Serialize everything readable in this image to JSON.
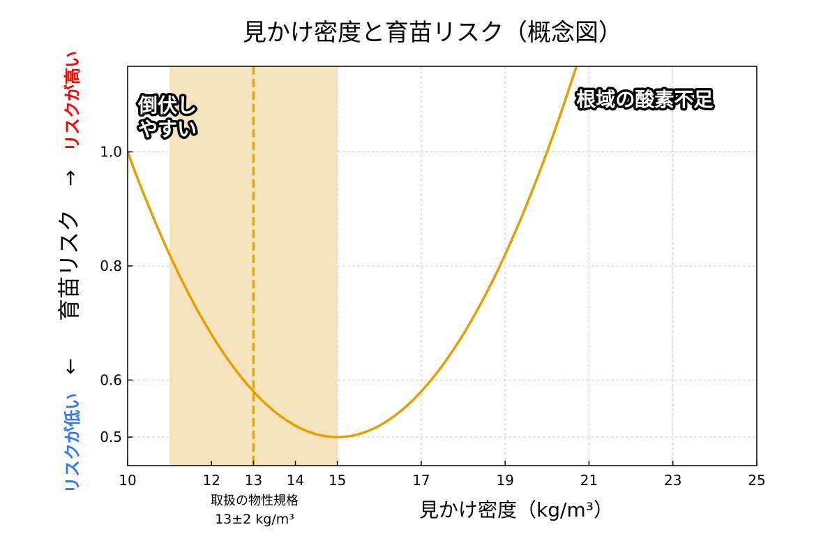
{
  "chart_data": {
    "type": "line",
    "title": "見かけ密度と育苗リスク（概念図）",
    "xlabel": "見かけ密度（kg/m³）",
    "ylabel": "育苗リスク",
    "ylabel_left_arrow": "←",
    "ylabel_right_arrow": "→",
    "ylabel_high": "リスクが高い",
    "ylabel_low": "リスクが低い",
    "xlim": [
      10,
      25
    ],
    "ylim": [
      0.45,
      1.15
    ],
    "xticks": [
      10,
      12,
      13,
      14,
      15,
      17,
      19,
      21,
      23,
      25
    ],
    "yticks": [
      0.5,
      0.6,
      0.8,
      1.0
    ],
    "ytick_labels": [
      "0.5",
      "0.6",
      "0.8",
      "1.0"
    ],
    "grid": true,
    "series": [
      {
        "name": "risk",
        "color": "#E69F00",
        "formula": "0.5 + 0.02*(x-15)^2",
        "x": [
          10,
          11,
          12,
          13,
          14,
          15,
          16,
          17,
          18,
          19,
          20,
          20.7
        ],
        "y": [
          1.0,
          0.82,
          0.68,
          0.58,
          0.52,
          0.5,
          0.52,
          0.58,
          0.68,
          0.82,
          1.0,
          1.15
        ]
      }
    ],
    "shaded_band": {
      "x": [
        11,
        15
      ],
      "color": "#F5E3BE"
    },
    "spec_line": {
      "x": 13,
      "color": "#E69F00"
    },
    "spec_label": [
      "取扱の物性規格",
      "13±2 kg/m³"
    ],
    "annotations": [
      {
        "lines": [
          "倒伏し",
          "やすい"
        ],
        "x": 10.25,
        "y": 1.07
      },
      {
        "lines": [
          "根域の酸素不足"
        ],
        "x": 20.7,
        "y": 1.08
      }
    ],
    "colors": {
      "high": "#FF0000",
      "low": "#3377FF",
      "grid": "#CCCCCC"
    }
  }
}
